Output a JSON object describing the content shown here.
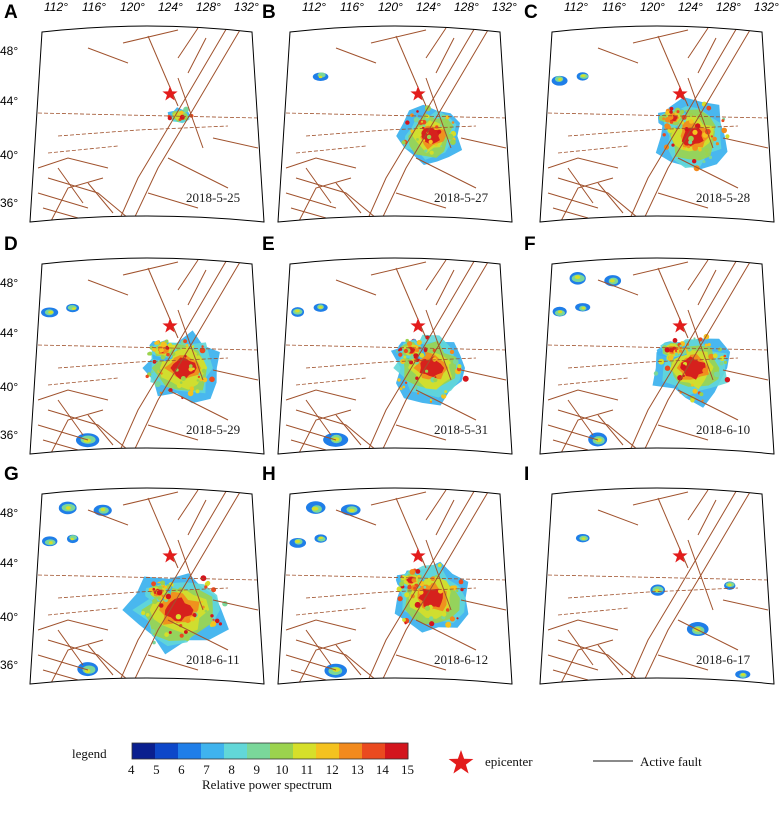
{
  "panels": [
    {
      "letter": "A",
      "date": "2018-5-25",
      "level": 1
    },
    {
      "letter": "B",
      "date": "2018-5-27",
      "level": 2
    },
    {
      "letter": "C",
      "date": "2018-5-28",
      "level": 3
    },
    {
      "letter": "D",
      "date": "2018-5-29",
      "level": 4
    },
    {
      "letter": "E",
      "date": "2018-5-31",
      "level": 4
    },
    {
      "letter": "F",
      "date": "2018-6-10",
      "level": 4
    },
    {
      "letter": "G",
      "date": "2018-6-11",
      "level": 5
    },
    {
      "letter": "H",
      "date": "2018-6-12",
      "level": 4
    },
    {
      "letter": "I",
      "date": "2018-6-17",
      "level": 0
    }
  ],
  "lon_labels": [
    "112°",
    "116°",
    "120°",
    "124°",
    "128°",
    "132°"
  ],
  "lat_labels": [
    "48°",
    "44°",
    "40°",
    "36°"
  ],
  "legend": {
    "title": "legend",
    "ticks": [
      "4",
      "5",
      "6",
      "7",
      "8",
      "9",
      "10",
      "11",
      "12",
      "13",
      "14",
      "15"
    ],
    "caption": "Relative power spectrum",
    "epicenter_label": "epicenter",
    "fault_label": "Active fault",
    "colors": [
      "#0a1f8f",
      "#0d47c9",
      "#1f7ee8",
      "#3fb3ee",
      "#62d7d8",
      "#7ad79a",
      "#9bd34e",
      "#d6df2a",
      "#f4c21f",
      "#f28a1d",
      "#ea4a1f",
      "#d3151d"
    ]
  },
  "colors": {
    "fault": "#a0522d",
    "epicenter": "#e31c1c",
    "frame": "#000000"
  }
}
